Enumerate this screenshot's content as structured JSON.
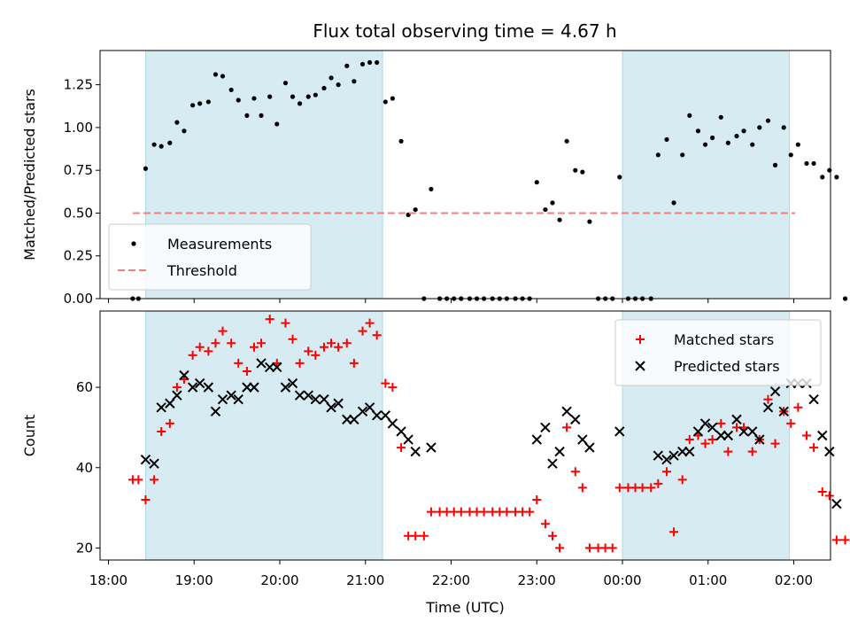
{
  "title": "Flux total observing time = 4.67 h",
  "chart_data": [
    {
      "type": "scatter",
      "ylabel": "Matched/Predicted stars",
      "xlabel": "",
      "ylim": [
        0.0,
        1.45
      ],
      "yticks": [
        "0.00",
        "0.25",
        "0.50",
        "0.75",
        "1.00",
        "1.25"
      ],
      "grid": false,
      "legend_position": "lower-left",
      "shaded_intervals": [
        [
          "18:26",
          "21:12"
        ],
        [
          "00:00",
          "01:57"
        ]
      ],
      "series": [
        {
          "name": "Measurements",
          "kind": "points",
          "color": "#000000",
          "points": [
            [
              "18:17",
              0.0
            ],
            [
              "18:21",
              0.0
            ],
            [
              "18:26",
              0.76
            ],
            [
              "18:32",
              0.9
            ],
            [
              "18:37",
              0.89
            ],
            [
              "18:43",
              0.91
            ],
            [
              "18:48",
              1.03
            ],
            [
              "18:53",
              0.98
            ],
            [
              "18:59",
              1.13
            ],
            [
              "19:04",
              1.14
            ],
            [
              "19:10",
              1.15
            ],
            [
              "19:15",
              1.31
            ],
            [
              "19:20",
              1.3
            ],
            [
              "19:26",
              1.22
            ],
            [
              "19:31",
              1.16
            ],
            [
              "19:37",
              1.07
            ],
            [
              "19:42",
              1.17
            ],
            [
              "19:47",
              1.07
            ],
            [
              "19:53",
              1.18
            ],
            [
              "19:58",
              1.02
            ],
            [
              "20:04",
              1.26
            ],
            [
              "20:09",
              1.18
            ],
            [
              "20:14",
              1.14
            ],
            [
              "20:20",
              1.18
            ],
            [
              "20:25",
              1.19
            ],
            [
              "20:31",
              1.23
            ],
            [
              "20:36",
              1.29
            ],
            [
              "20:41",
              1.25
            ],
            [
              "20:47",
              1.36
            ],
            [
              "20:52",
              1.27
            ],
            [
              "20:58",
              1.37
            ],
            [
              "21:03",
              1.38
            ],
            [
              "21:08",
              1.38
            ],
            [
              "21:14",
              1.15
            ],
            [
              "21:19",
              1.17
            ],
            [
              "21:25",
              0.92
            ],
            [
              "21:30",
              0.49
            ],
            [
              "21:35",
              0.52
            ],
            [
              "21:41",
              0.0
            ],
            [
              "21:46",
              0.64
            ],
            [
              "21:52",
              0.0
            ],
            [
              "21:57",
              0.0
            ],
            [
              "22:02",
              0.0
            ],
            [
              "22:07",
              0.0
            ],
            [
              "22:13",
              0.0
            ],
            [
              "22:18",
              0.0
            ],
            [
              "22:23",
              0.0
            ],
            [
              "22:29",
              0.0
            ],
            [
              "22:34",
              0.0
            ],
            [
              "22:39",
              0.0
            ],
            [
              "22:45",
              0.0
            ],
            [
              "22:50",
              0.0
            ],
            [
              "22:55",
              0.0
            ],
            [
              "23:00",
              0.68
            ],
            [
              "23:06",
              0.52
            ],
            [
              "23:11",
              0.56
            ],
            [
              "23:16",
              0.46
            ],
            [
              "23:21",
              0.92
            ],
            [
              "23:27",
              0.75
            ],
            [
              "23:32",
              0.74
            ],
            [
              "23:37",
              0.45
            ],
            [
              "23:43",
              0.0
            ],
            [
              "23:48",
              0.0
            ],
            [
              "23:53",
              0.0
            ],
            [
              "23:58",
              0.71
            ],
            [
              "00:04",
              0.0
            ],
            [
              "00:09",
              0.0
            ],
            [
              "00:14",
              0.0
            ],
            [
              "00:20",
              0.0
            ],
            [
              "00:25",
              0.84
            ],
            [
              "00:31",
              0.93
            ],
            [
              "00:36",
              0.56
            ],
            [
              "00:42",
              0.84
            ],
            [
              "00:47",
              1.07
            ],
            [
              "00:53",
              0.98
            ],
            [
              "00:58",
              0.9
            ],
            [
              "01:03",
              0.94
            ],
            [
              "01:09",
              1.06
            ],
            [
              "01:14",
              0.91
            ],
            [
              "01:20",
              0.95
            ],
            [
              "01:25",
              0.98
            ],
            [
              "01:31",
              0.9
            ],
            [
              "01:36",
              1.0
            ],
            [
              "01:42",
              1.04
            ],
            [
              "01:47",
              0.78
            ],
            [
              "01:53",
              1.0
            ],
            [
              "01:58",
              0.84
            ],
            [
              "02:03",
              0.9
            ],
            [
              "02:09",
              0.79
            ],
            [
              "02:14",
              0.79
            ],
            [
              "02:20",
              0.71
            ],
            [
              "02:25",
              0.75
            ],
            [
              "02:30",
              0.71
            ],
            [
              "02:36",
              0.0
            ]
          ]
        },
        {
          "name": "Threshold",
          "kind": "dashed-line",
          "color": "#f08080",
          "points": [
            [
              "18:17",
              0.5
            ],
            [
              "02:01",
              0.5
            ]
          ]
        }
      ]
    },
    {
      "type": "scatter",
      "ylabel": "Count",
      "xlabel": "Time (UTC)",
      "ylim": [
        17,
        79
      ],
      "yticks": [
        "20",
        "40",
        "60"
      ],
      "xticks": [
        "18:00",
        "19:00",
        "20:00",
        "21:00",
        "22:00",
        "23:00",
        "00:00",
        "01:00",
        "02:00"
      ],
      "grid": false,
      "legend_position": "upper-right",
      "shaded_intervals": [
        [
          "18:26",
          "21:12"
        ],
        [
          "00:00",
          "01:57"
        ]
      ],
      "series": [
        {
          "name": "Matched stars",
          "kind": "plus",
          "color": "#ff0000",
          "points": [
            [
              "18:17",
              37
            ],
            [
              "18:21",
              37
            ],
            [
              "18:26",
              32
            ],
            [
              "18:32",
              37
            ],
            [
              "18:37",
              49
            ],
            [
              "18:43",
              51
            ],
            [
              "18:48",
              60
            ],
            [
              "18:53",
              62
            ],
            [
              "18:59",
              68
            ],
            [
              "19:04",
              70
            ],
            [
              "19:10",
              69
            ],
            [
              "19:15",
              71
            ],
            [
              "19:20",
              74
            ],
            [
              "19:26",
              71
            ],
            [
              "19:31",
              66
            ],
            [
              "19:37",
              64
            ],
            [
              "19:42",
              70
            ],
            [
              "19:47",
              71
            ],
            [
              "19:53",
              77
            ],
            [
              "19:58",
              66
            ],
            [
              "20:04",
              76
            ],
            [
              "20:09",
              72
            ],
            [
              "20:14",
              66
            ],
            [
              "20:20",
              69
            ],
            [
              "20:25",
              68
            ],
            [
              "20:31",
              70
            ],
            [
              "20:36",
              71
            ],
            [
              "20:41",
              70
            ],
            [
              "20:47",
              71
            ],
            [
              "20:52",
              66
            ],
            [
              "20:58",
              74
            ],
            [
              "21:03",
              76
            ],
            [
              "21:08",
              73
            ],
            [
              "21:14",
              61
            ],
            [
              "21:19",
              60
            ],
            [
              "21:25",
              45
            ],
            [
              "21:30",
              23
            ],
            [
              "21:35",
              23
            ],
            [
              "21:41",
              23
            ],
            [
              "21:46",
              29
            ],
            [
              "21:52",
              29
            ],
            [
              "21:57",
              29
            ],
            [
              "22:02",
              29
            ],
            [
              "22:07",
              29
            ],
            [
              "22:13",
              29
            ],
            [
              "22:18",
              29
            ],
            [
              "22:23",
              29
            ],
            [
              "22:29",
              29
            ],
            [
              "22:34",
              29
            ],
            [
              "22:39",
              29
            ],
            [
              "22:45",
              29
            ],
            [
              "22:50",
              29
            ],
            [
              "22:55",
              29
            ],
            [
              "23:00",
              32
            ],
            [
              "23:06",
              26
            ],
            [
              "23:11",
              23
            ],
            [
              "23:16",
              20
            ],
            [
              "23:21",
              50
            ],
            [
              "23:27",
              39
            ],
            [
              "23:32",
              35
            ],
            [
              "23:37",
              20
            ],
            [
              "23:43",
              20
            ],
            [
              "23:48",
              20
            ],
            [
              "23:53",
              20
            ],
            [
              "23:58",
              35
            ],
            [
              "00:04",
              35
            ],
            [
              "00:09",
              35
            ],
            [
              "00:14",
              35
            ],
            [
              "00:20",
              35
            ],
            [
              "00:25",
              36
            ],
            [
              "00:31",
              39
            ],
            [
              "00:36",
              24
            ],
            [
              "00:42",
              37
            ],
            [
              "00:47",
              47
            ],
            [
              "00:53",
              48
            ],
            [
              "00:58",
              46
            ],
            [
              "01:03",
              47
            ],
            [
              "01:09",
              51
            ],
            [
              "01:14",
              44
            ],
            [
              "01:20",
              50
            ],
            [
              "01:25",
              50
            ],
            [
              "01:31",
              44
            ],
            [
              "01:36",
              47
            ],
            [
              "01:42",
              57
            ],
            [
              "01:47",
              46
            ],
            [
              "01:53",
              54
            ],
            [
              "01:58",
              51
            ],
            [
              "02:03",
              55
            ],
            [
              "02:09",
              48
            ],
            [
              "02:14",
              45
            ],
            [
              "02:20",
              34
            ],
            [
              "02:25",
              33
            ],
            [
              "02:30",
              22
            ],
            [
              "02:36",
              22
            ]
          ]
        },
        {
          "name": "Predicted stars",
          "kind": "x",
          "color": "#000000",
          "points": [
            [
              "18:26",
              42
            ],
            [
              "18:32",
              41
            ],
            [
              "18:37",
              55
            ],
            [
              "18:43",
              56
            ],
            [
              "18:48",
              58
            ],
            [
              "18:53",
              63
            ],
            [
              "18:59",
              60
            ],
            [
              "19:04",
              61
            ],
            [
              "19:10",
              60
            ],
            [
              "19:15",
              54
            ],
            [
              "19:20",
              57
            ],
            [
              "19:26",
              58
            ],
            [
              "19:31",
              57
            ],
            [
              "19:37",
              60
            ],
            [
              "19:42",
              60
            ],
            [
              "19:47",
              66
            ],
            [
              "19:53",
              65
            ],
            [
              "19:58",
              65
            ],
            [
              "20:04",
              60
            ],
            [
              "20:09",
              61
            ],
            [
              "20:14",
              58
            ],
            [
              "20:20",
              58
            ],
            [
              "20:25",
              57
            ],
            [
              "20:31",
              57
            ],
            [
              "20:36",
              55
            ],
            [
              "20:41",
              56
            ],
            [
              "20:47",
              52
            ],
            [
              "20:52",
              52
            ],
            [
              "20:58",
              54
            ],
            [
              "21:03",
              55
            ],
            [
              "21:08",
              53
            ],
            [
              "21:14",
              53
            ],
            [
              "21:19",
              51
            ],
            [
              "21:25",
              49
            ],
            [
              "21:30",
              47
            ],
            [
              "21:35",
              44
            ],
            [
              "21:46",
              45
            ],
            [
              "23:00",
              47
            ],
            [
              "23:06",
              50
            ],
            [
              "23:11",
              41
            ],
            [
              "23:16",
              44
            ],
            [
              "23:21",
              54
            ],
            [
              "23:27",
              52
            ],
            [
              "23:32",
              47
            ],
            [
              "23:37",
              45
            ],
            [
              "23:58",
              49
            ],
            [
              "00:25",
              43
            ],
            [
              "00:31",
              42
            ],
            [
              "00:36",
              43
            ],
            [
              "00:42",
              44
            ],
            [
              "00:47",
              44
            ],
            [
              "00:53",
              49
            ],
            [
              "00:58",
              51
            ],
            [
              "01:03",
              50
            ],
            [
              "01:09",
              48
            ],
            [
              "01:14",
              48
            ],
            [
              "01:20",
              52
            ],
            [
              "01:25",
              49
            ],
            [
              "01:31",
              49
            ],
            [
              "01:36",
              47
            ],
            [
              "01:42",
              55
            ],
            [
              "01:47",
              59
            ],
            [
              "01:53",
              54
            ],
            [
              "01:58",
              61
            ],
            [
              "02:03",
              61
            ],
            [
              "02:09",
              61
            ],
            [
              "02:14",
              57
            ],
            [
              "02:20",
              48
            ],
            [
              "02:25",
              44
            ],
            [
              "02:30",
              31
            ]
          ]
        }
      ]
    }
  ]
}
